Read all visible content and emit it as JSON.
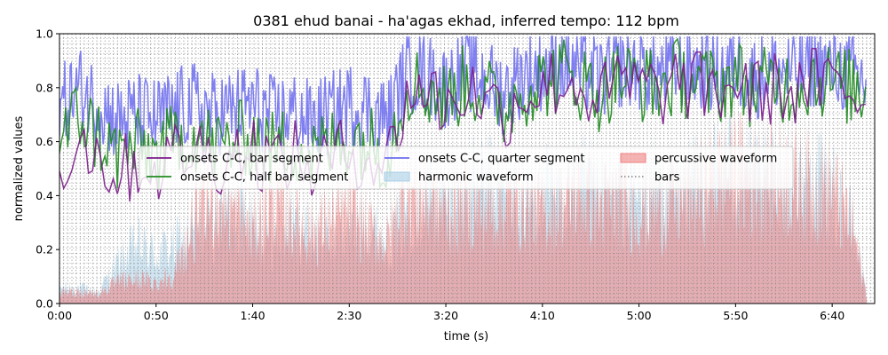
{
  "chart_data": {
    "type": "line",
    "title": "0381 ehud banai - ha'agas ekhad, inferred tempo: 112 bpm",
    "xlabel": "time (s)",
    "ylabel": "normalized values",
    "xlim": [
      0,
      422
    ],
    "ylim": [
      0,
      1.0
    ],
    "x_ticks": [
      0,
      50,
      100,
      150,
      200,
      250,
      300,
      350,
      400
    ],
    "x_tick_labels": [
      "0:00",
      "0:50",
      "1:40",
      "2:30",
      "3:20",
      "4:10",
      "5:00",
      "5:50",
      "6:40"
    ],
    "y_ticks": [
      0.0,
      0.2,
      0.4,
      0.6,
      0.8,
      1.0
    ],
    "y_tick_labels": [
      "0.0",
      "0.2",
      "0.4",
      "0.6",
      "0.8",
      "1.0"
    ],
    "bar_period_s": 2.143,
    "legend_position": "center",
    "colors": {
      "bar": "#7b1d8a",
      "half": "#1f8a1f",
      "quarter": "#6b6bf0",
      "harmonic": "#a9cfe6",
      "percussive": "#f08080",
      "bars": "#808080"
    },
    "series": [
      {
        "name": "onsets C-C, bar segment",
        "x": [
          0,
          10,
          20,
          30,
          40,
          50,
          60,
          70,
          80,
          90,
          100,
          110,
          120,
          130,
          140,
          150,
          160,
          170,
          180,
          190,
          200,
          210,
          220,
          230,
          240,
          250,
          260,
          270,
          280,
          290,
          300,
          310,
          320,
          330,
          340,
          350,
          360,
          370,
          380,
          390,
          400,
          410,
          418
        ],
        "values": [
          0.5,
          0.62,
          0.55,
          0.48,
          0.52,
          0.5,
          0.55,
          0.58,
          0.53,
          0.56,
          0.58,
          0.52,
          0.55,
          0.5,
          0.53,
          0.57,
          0.55,
          0.52,
          0.78,
          0.8,
          0.72,
          0.8,
          0.76,
          0.7,
          0.78,
          0.8,
          0.83,
          0.8,
          0.75,
          0.82,
          0.8,
          0.78,
          0.82,
          0.8,
          0.78,
          0.82,
          0.77,
          0.8,
          0.78,
          0.82,
          0.8,
          0.78,
          0.76
        ]
      },
      {
        "name": "onsets C-C, half bar segment",
        "x": [
          0,
          10,
          20,
          30,
          40,
          50,
          60,
          70,
          80,
          90,
          100,
          110,
          120,
          130,
          140,
          150,
          160,
          170,
          180,
          190,
          200,
          210,
          220,
          230,
          240,
          250,
          260,
          270,
          280,
          290,
          300,
          310,
          320,
          330,
          340,
          350,
          360,
          370,
          380,
          390,
          400,
          410,
          418
        ],
        "values": [
          0.6,
          0.7,
          0.62,
          0.55,
          0.58,
          0.55,
          0.6,
          0.63,
          0.58,
          0.6,
          0.62,
          0.57,
          0.6,
          0.55,
          0.58,
          0.62,
          0.6,
          0.56,
          0.82,
          0.8,
          0.75,
          0.82,
          0.78,
          0.72,
          0.8,
          0.82,
          0.85,
          0.82,
          0.78,
          0.84,
          0.82,
          0.8,
          0.84,
          0.82,
          0.8,
          0.84,
          0.79,
          0.82,
          0.8,
          0.84,
          0.82,
          0.8,
          0.78
        ]
      },
      {
        "name": "onsets C-C, quarter segment",
        "x": [
          0,
          10,
          20,
          30,
          40,
          50,
          60,
          70,
          80,
          90,
          100,
          110,
          120,
          130,
          140,
          150,
          160,
          170,
          180,
          190,
          200,
          210,
          220,
          230,
          240,
          250,
          260,
          270,
          280,
          290,
          300,
          310,
          320,
          330,
          340,
          350,
          360,
          370,
          380,
          390,
          400,
          410,
          418
        ],
        "values": [
          0.72,
          0.8,
          0.74,
          0.68,
          0.7,
          0.68,
          0.72,
          0.74,
          0.7,
          0.72,
          0.74,
          0.69,
          0.71,
          0.67,
          0.7,
          0.74,
          0.72,
          0.68,
          0.86,
          0.85,
          0.8,
          0.87,
          0.83,
          0.78,
          0.85,
          0.87,
          0.9,
          0.87,
          0.83,
          0.88,
          0.87,
          0.85,
          0.88,
          0.87,
          0.85,
          0.88,
          0.84,
          0.87,
          0.85,
          0.88,
          0.87,
          0.85,
          0.82
        ]
      },
      {
        "name": "harmonic waveform",
        "x": [
          0,
          10,
          20,
          30,
          40,
          50,
          60,
          70,
          80,
          90,
          100,
          110,
          120,
          130,
          140,
          150,
          160,
          170,
          180,
          190,
          200,
          210,
          220,
          230,
          240,
          250,
          260,
          270,
          280,
          290,
          300,
          310,
          320,
          330,
          340,
          350,
          360,
          370,
          380,
          390,
          400,
          410,
          418
        ],
        "values": [
          0.08,
          0.08,
          0.06,
          0.2,
          0.3,
          0.25,
          0.3,
          0.35,
          0.4,
          0.5,
          0.45,
          0.3,
          0.4,
          0.35,
          0.3,
          0.35,
          0.4,
          0.3,
          0.45,
          0.55,
          0.5,
          0.55,
          0.6,
          0.55,
          0.5,
          0.55,
          0.55,
          0.6,
          0.55,
          0.55,
          0.55,
          0.58,
          0.55,
          0.6,
          0.65,
          0.68,
          0.6,
          0.62,
          0.6,
          0.62,
          0.55,
          0.4,
          0.05
        ]
      },
      {
        "name": "percussive waveform",
        "x": [
          0,
          10,
          20,
          30,
          40,
          50,
          60,
          70,
          80,
          90,
          100,
          110,
          120,
          130,
          140,
          150,
          160,
          170,
          180,
          190,
          200,
          210,
          220,
          230,
          240,
          250,
          260,
          270,
          280,
          290,
          300,
          310,
          320,
          330,
          340,
          350,
          360,
          370,
          380,
          390,
          400,
          410,
          418
        ],
        "values": [
          0.05,
          0.06,
          0.05,
          0.1,
          0.12,
          0.1,
          0.15,
          0.4,
          0.5,
          0.45,
          0.35,
          0.5,
          0.4,
          0.35,
          0.4,
          0.45,
          0.35,
          0.3,
          0.55,
          0.5,
          0.45,
          0.48,
          0.45,
          0.5,
          0.48,
          0.45,
          0.5,
          0.55,
          0.48,
          0.5,
          0.45,
          0.48,
          0.5,
          0.55,
          0.6,
          0.65,
          0.6,
          0.62,
          0.6,
          0.58,
          0.55,
          0.4,
          0.03
        ]
      },
      {
        "name": "bars"
      }
    ]
  }
}
